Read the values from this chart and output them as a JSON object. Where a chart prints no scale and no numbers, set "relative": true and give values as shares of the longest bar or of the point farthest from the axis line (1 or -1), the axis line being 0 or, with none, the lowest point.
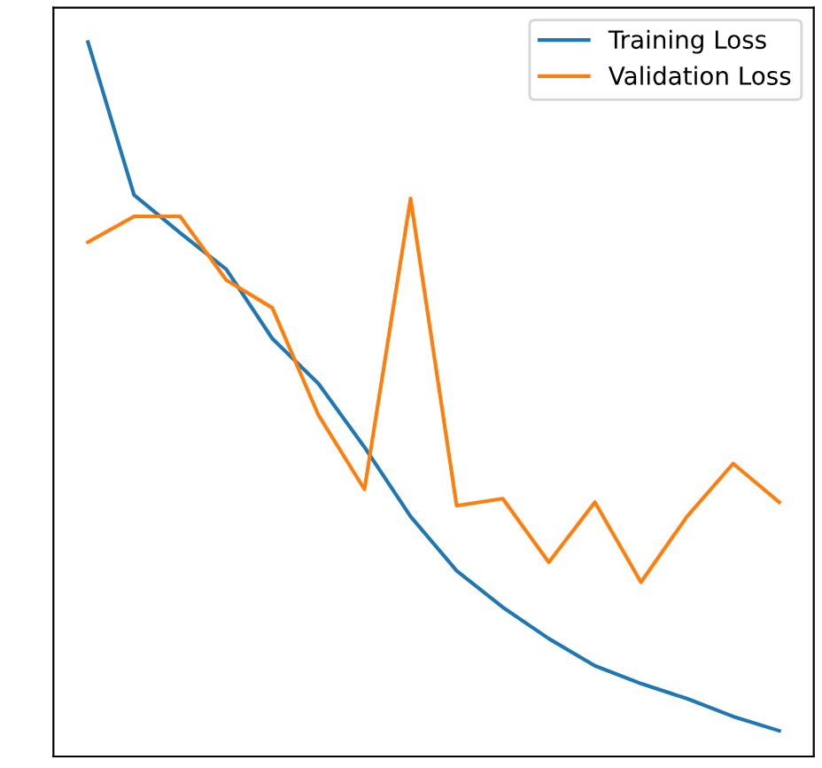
{
  "chart_data": {
    "type": "line",
    "relative": true,
    "categories": [
      null,
      null,
      null,
      null,
      null,
      null,
      null,
      null,
      null,
      null,
      null,
      null,
      null,
      null,
      null,
      null
    ],
    "series": [
      {
        "name": "Training Loss",
        "color": "#1f77b4",
        "values": [
          1,
          0.786,
          0.733,
          0.682,
          0.585,
          0.522,
          0.433,
          0.336,
          0.26,
          0.209,
          0.165,
          0.127,
          0.102,
          0.081,
          0.056,
          0.036
        ]
      },
      {
        "name": "Validation Loss",
        "color": "#ff7f0e",
        "values": [
          0.72,
          0.756,
          0.756,
          0.667,
          0.628,
          0.478,
          0.374,
          0.781,
          0.351,
          0.361,
          0.272,
          0.356,
          0.244,
          0.336,
          0.41,
          0.356
        ]
      }
    ],
    "legend": "top right",
    "grid": false
  }
}
